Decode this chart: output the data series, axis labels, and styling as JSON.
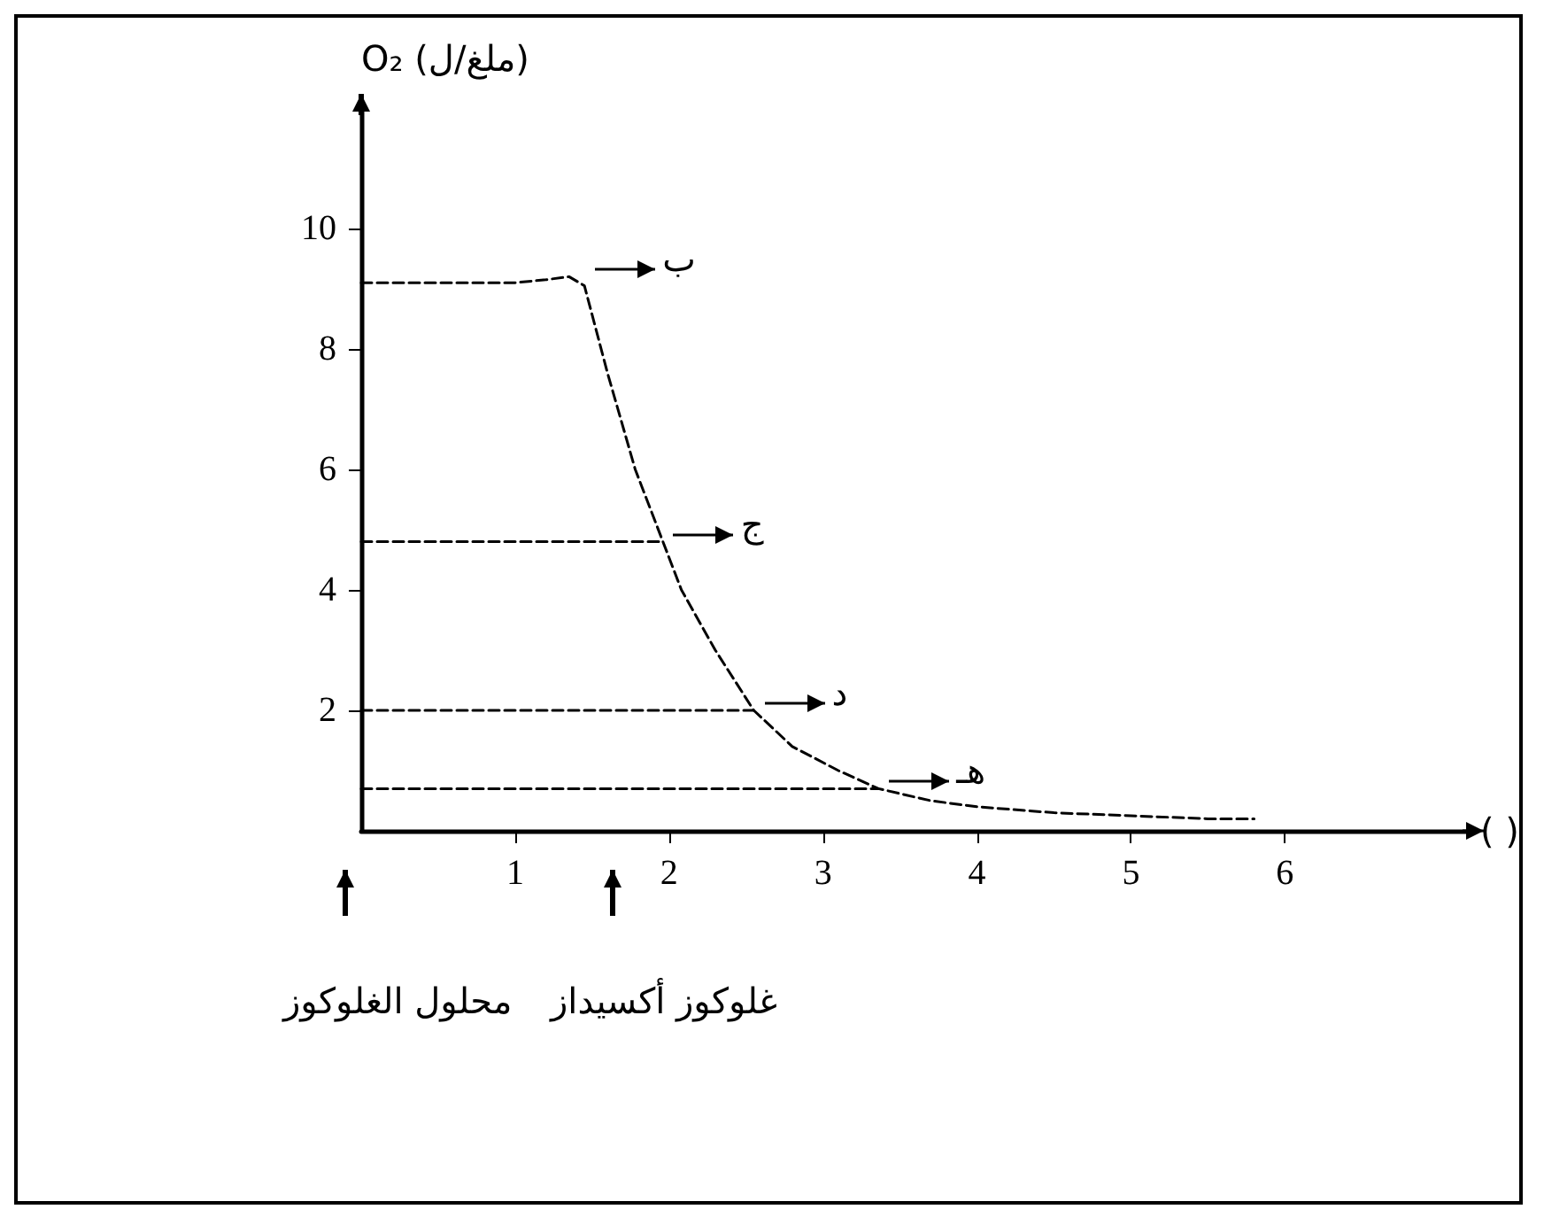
{
  "chart_data": {
    "type": "line",
    "ylabel": "O₂ (ملغ/ل)",
    "xlabel": "( )",
    "xlim": [
      0,
      7.2
    ],
    "xticks": [
      1,
      2,
      3,
      4,
      5,
      6
    ],
    "ylim": [
      0,
      12
    ],
    "yticks": [
      2,
      4,
      6,
      8,
      10
    ],
    "grid": false,
    "marker": "none",
    "series": [
      {
        "color": "#000000",
        "line_style": "dashed",
        "x": [
          0,
          0.5,
          1.0,
          1.2,
          1.35,
          1.45,
          1.6,
          1.78,
          1.96,
          2.08,
          2.3,
          2.55,
          2.8,
          3.1,
          3.36,
          3.7,
          4.0,
          4.5,
          5.0,
          5.5,
          5.8
        ],
        "values": [
          9.1,
          9.1,
          9.1,
          9.15,
          9.2,
          9.05,
          7.6,
          6,
          4.8,
          4,
          3,
          2,
          1.4,
          1.0,
          0.7,
          0.5,
          0.4,
          0.3,
          0.25,
          0.2,
          0.2
        ]
      },
      {
        "color": "#000000",
        "line_style": "dashed",
        "x": [
          0,
          1.96
        ],
        "values": [
          4.8,
          4.8
        ]
      },
      {
        "color": "#000000",
        "line_style": "dashed",
        "x": [
          0,
          2.55
        ],
        "values": [
          2,
          2
        ]
      },
      {
        "color": "#000000",
        "line_style": "dashed",
        "x": [
          0,
          3.36
        ],
        "values": [
          0.7,
          0.7
        ]
      }
    ],
    "annotations": [
      {
        "text": "ب",
        "x": 1.45,
        "y": 9.2
      },
      {
        "text": "ج",
        "x": 1.96,
        "y": 4.8
      },
      {
        "text": "د",
        "x": 2.55,
        "y": 2
      },
      {
        "text": "هـ",
        "x": 3.36,
        "y": 0.7
      },
      "محلول الغلوكوز",
      "غلوكوز أكسيداز"
    ]
  }
}
